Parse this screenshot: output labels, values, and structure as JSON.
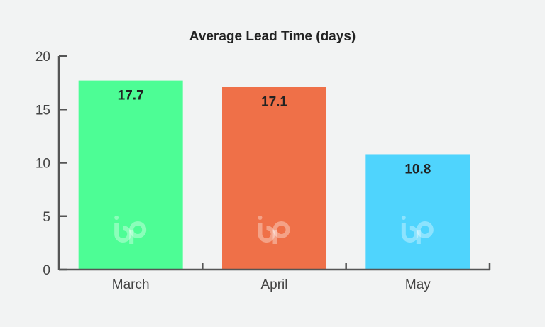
{
  "chart_data": {
    "type": "bar",
    "title": "Average Lead Time (days)",
    "xlabel": "",
    "ylabel": "",
    "categories": [
      "March",
      "April",
      "May"
    ],
    "values": [
      17.7,
      17.1,
      10.8
    ],
    "value_labels": [
      "17.7",
      "17.1",
      "10.8"
    ],
    "ylim": [
      0,
      20
    ],
    "yticks": [
      0,
      5,
      10,
      15,
      20
    ],
    "ytick_labels": [
      "0",
      "5",
      "10",
      "15",
      "20"
    ],
    "bar_colors": [
      "#4dfd95",
      "#ef7048",
      "#4fd4fd"
    ],
    "axis_color": "#555555",
    "grid": false,
    "legend": "none",
    "watermark_icon": "bp-logo-icon"
  }
}
